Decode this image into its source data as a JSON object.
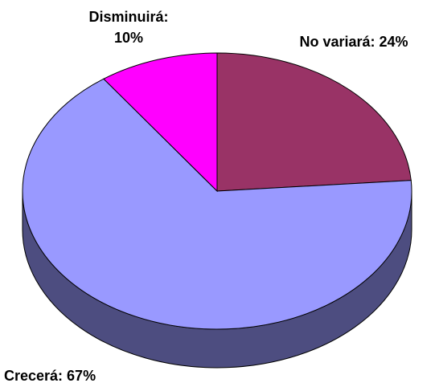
{
  "chart_data": {
    "type": "pie3d",
    "categories": [
      "No variará:",
      "Crecerá:",
      "Disminuirá:"
    ],
    "values": [
      24,
      67,
      10
    ],
    "value_labels": [
      "24%",
      "67%",
      "10%"
    ],
    "colors": [
      "#993366",
      "#9999ff",
      "#ff00ff"
    ]
  }
}
